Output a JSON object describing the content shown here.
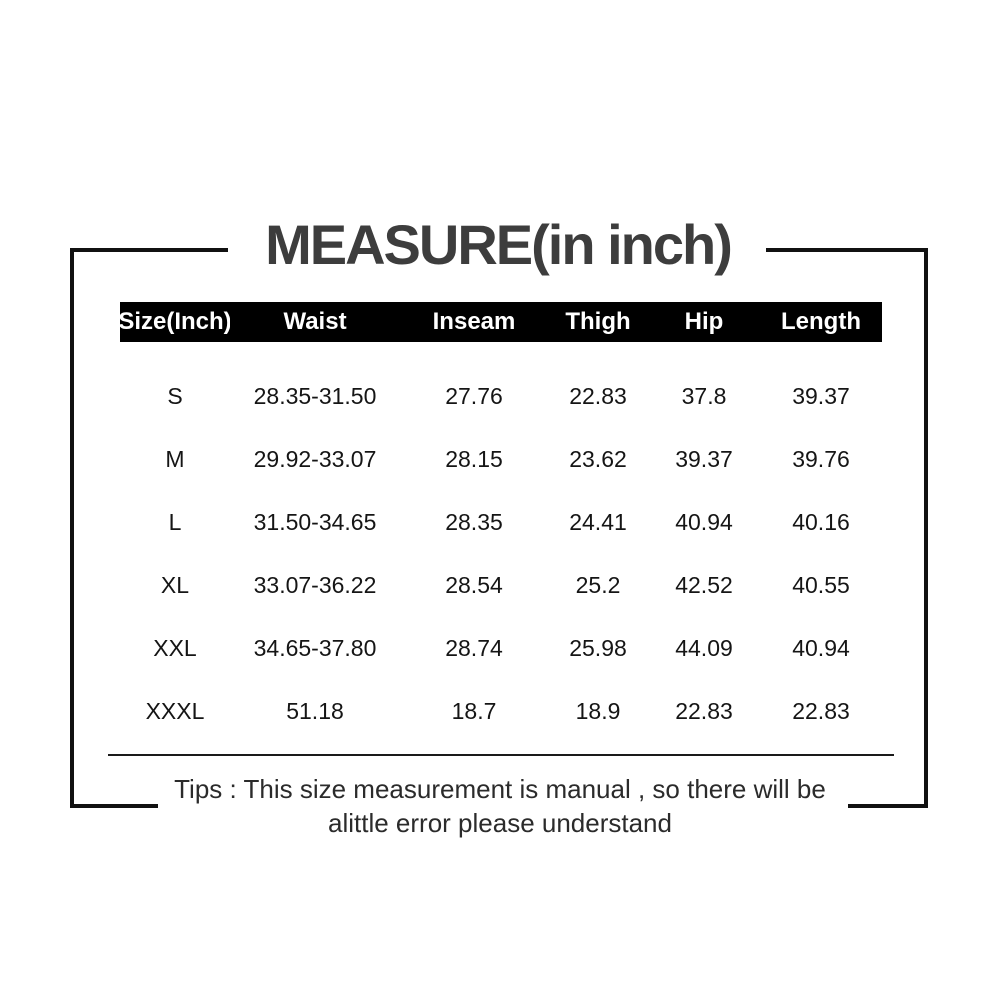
{
  "title": "MEASURE(in inch)",
  "table": {
    "headers": [
      "Size(Inch)",
      "Waist",
      "Inseam",
      "Thigh",
      "Hip",
      "Length"
    ],
    "rows": [
      [
        "S",
        "28.35-31.50",
        "27.76",
        "22.83",
        "37.8",
        "39.37"
      ],
      [
        "M",
        "29.92-33.07",
        "28.15",
        "23.62",
        "39.37",
        "39.76"
      ],
      [
        "L",
        "31.50-34.65",
        "28.35",
        "24.41",
        "40.94",
        "40.16"
      ],
      [
        "XL",
        "33.07-36.22",
        "28.54",
        "25.2",
        "42.52",
        "40.55"
      ],
      [
        "XXL",
        "34.65-37.80",
        "28.74",
        "25.98",
        "44.09",
        "40.94"
      ],
      [
        "XXXL",
        "51.18",
        "18.7",
        "18.9",
        "22.83",
        "22.83"
      ]
    ]
  },
  "tips": {
    "line1": "Tips : This size measurement is manual , so there will be",
    "line2": "alittle error please understand"
  },
  "colors": {
    "header_bg": "#000000",
    "header_text": "#ffffff",
    "title_text": "#3d3d3d",
    "body_text": "#151515",
    "frame_line": "#111111",
    "background": "#ffffff"
  }
}
